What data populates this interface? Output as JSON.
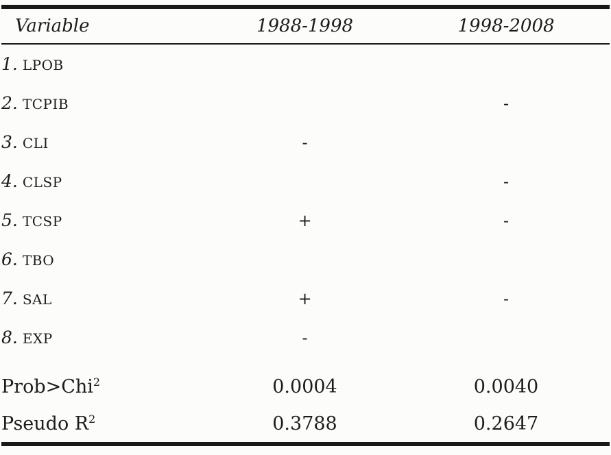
{
  "table": {
    "columns": {
      "variable": "Variable",
      "period1": "1988-1998",
      "period2": "1998-2008"
    },
    "rows": [
      {
        "num": "1.",
        "label": "LPOB",
        "p1": "",
        "p2": ""
      },
      {
        "num": "2.",
        "label": "TCPIB",
        "p1": "",
        "p2": "-"
      },
      {
        "num": "3.",
        "label": "CLI",
        "p1": "-",
        "p2": ""
      },
      {
        "num": "4.",
        "label": "CLSP",
        "p1": "",
        "p2": "-"
      },
      {
        "num": "5.",
        "label": "TCSP",
        "p1": "+",
        "p2": "-"
      },
      {
        "num": "6.",
        "label": "TBO",
        "p1": "",
        "p2": ""
      },
      {
        "num": "7.",
        "label": "SAL",
        "p1": "+",
        "p2": "-"
      },
      {
        "num": "8.",
        "label": "EXP",
        "p1": "-",
        "p2": ""
      }
    ],
    "stats": [
      {
        "label_base": "Prob>Chi",
        "label_sup": "2",
        "p1": "0.0004",
        "p2": "0.0040"
      },
      {
        "label_base": "Pseudo R",
        "label_sup": "2",
        "p1": "0.3788",
        "p2": "0.2647"
      }
    ]
  },
  "colors": {
    "text": "#1c1c1c",
    "rule": "#191919",
    "background": "#fcfcfa"
  }
}
